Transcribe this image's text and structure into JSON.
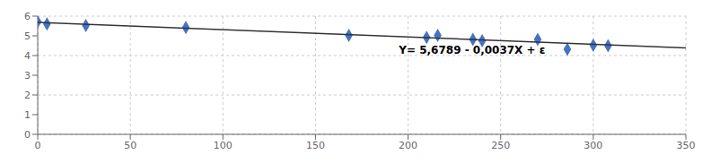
{
  "chart_data": {
    "type": "scatter",
    "series": [
      {
        "type": "scatter",
        "marker": "diamond",
        "color": "#4472C4",
        "x": [
          0,
          5,
          26,
          80,
          168,
          210,
          216,
          235,
          240,
          270,
          286,
          300,
          308
        ],
        "values": [
          5.72,
          5.6,
          5.52,
          5.42,
          5.02,
          4.92,
          5.02,
          4.82,
          4.75,
          4.82,
          4.32,
          4.52,
          4.5
        ]
      },
      {
        "type": "line",
        "line_style": "solid",
        "color": "#333333",
        "x": [
          0,
          350
        ],
        "values": [
          5.6789,
          4.3839
        ]
      }
    ],
    "annotations": [
      {
        "text": "Y= 5,6789 - 0,0037X + ε",
        "x": 195,
        "y": 4.25
      }
    ],
    "xlim": [
      0,
      350
    ],
    "ylim": [
      0,
      6
    ],
    "xticks": [
      0,
      50,
      100,
      150,
      200,
      250,
      300,
      350
    ],
    "yticks": [
      0,
      1,
      2,
      3,
      4,
      5,
      6
    ],
    "grid": true
  }
}
